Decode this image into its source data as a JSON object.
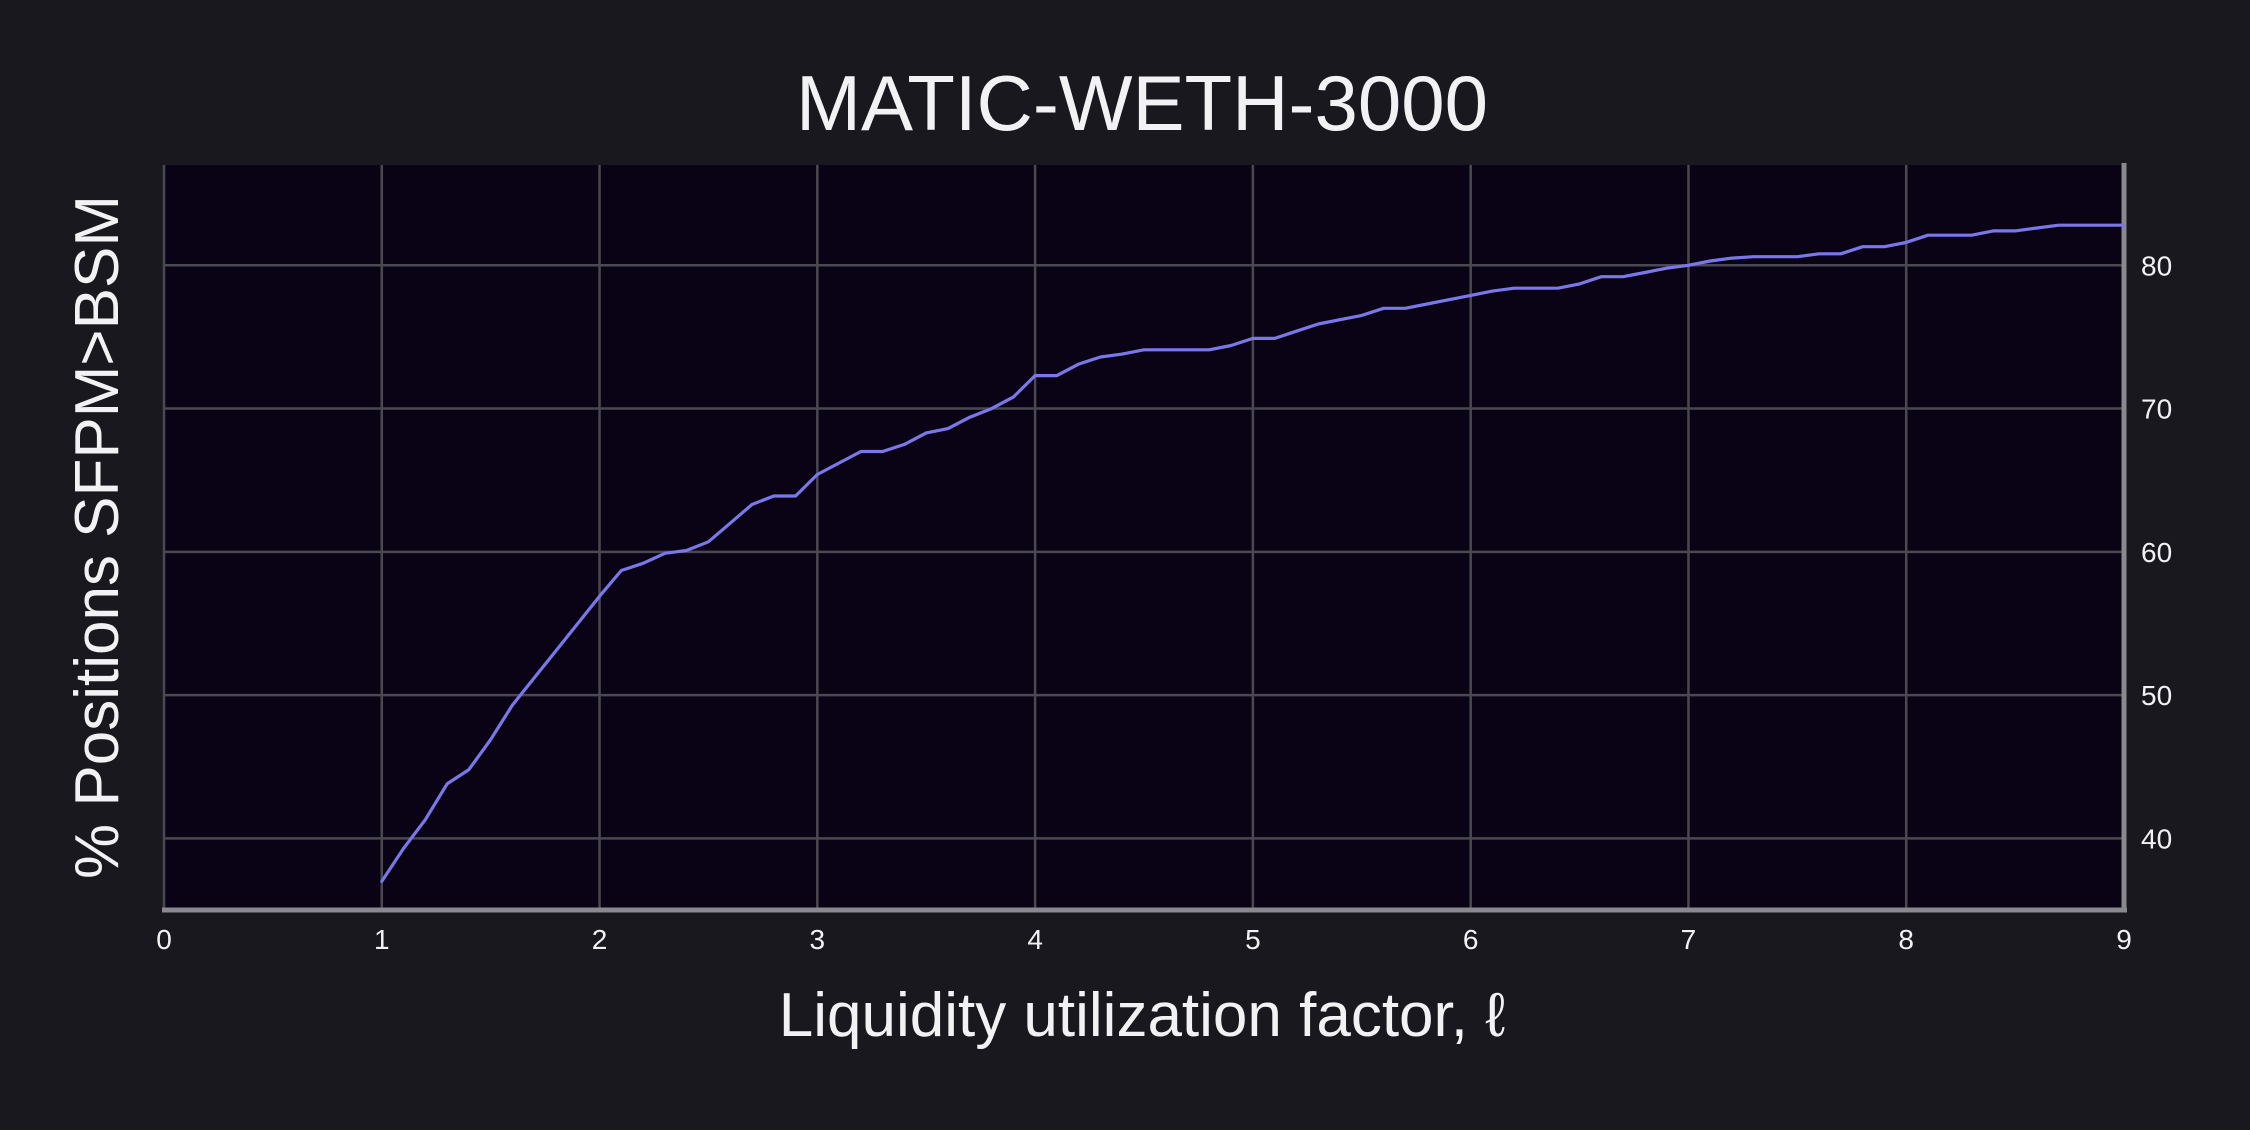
{
  "colors": {
    "background": "#19181e",
    "plot_background": "#0a0316",
    "grid": "#4a4850",
    "axis": "#8a8990",
    "series_line": "#7b77e8",
    "text": "#f2f2f4"
  },
  "chart_data": {
    "type": "line",
    "title": "MATIC-WETH-3000",
    "xlabel": "Liquidity utilization factor, ℓ",
    "ylabel": "% Positions SFPM>BSM",
    "xlim": [
      0,
      9
    ],
    "ylim": [
      35,
      87
    ],
    "xticks": [
      0,
      1,
      2,
      3,
      4,
      5,
      6,
      7,
      8,
      9
    ],
    "yticks": [
      40,
      50,
      60,
      70,
      80
    ],
    "y_axis_side": "right",
    "grid": true,
    "series": [
      {
        "x": [
          1.0,
          1.1,
          1.2,
          1.3,
          1.4,
          1.5,
          1.6,
          1.7,
          1.8,
          1.9,
          2.0,
          2.1,
          2.2,
          2.3,
          2.4,
          2.5,
          2.6,
          2.7,
          2.8,
          2.9,
          3.0,
          3.1,
          3.2,
          3.3,
          3.4,
          3.5,
          3.6,
          3.7,
          3.8,
          3.9,
          4.0,
          4.1,
          4.2,
          4.3,
          4.4,
          4.5,
          4.6,
          4.7,
          4.8,
          4.9,
          5.0,
          5.1,
          5.2,
          5.3,
          5.4,
          5.5,
          5.6,
          5.7,
          5.8,
          5.9,
          6.0,
          6.1,
          6.2,
          6.3,
          6.4,
          6.5,
          6.6,
          6.7,
          6.8,
          6.9,
          7.0,
          7.1,
          7.2,
          7.3,
          7.4,
          7.5,
          7.6,
          7.7,
          7.8,
          7.9,
          8.0,
          8.1,
          8.2,
          8.3,
          8.4,
          8.5,
          8.6,
          8.7,
          8.8,
          8.9,
          9.0
        ],
        "values": [
          37.0,
          39.3,
          41.3,
          43.8,
          44.8,
          46.9,
          49.3,
          51.2,
          53.1,
          55.0,
          56.9,
          58.7,
          59.2,
          59.9,
          60.1,
          60.7,
          62.0,
          63.3,
          63.9,
          63.9,
          65.4,
          66.2,
          67.0,
          67.0,
          67.5,
          68.3,
          68.6,
          69.4,
          70.0,
          70.8,
          72.3,
          72.3,
          73.1,
          73.6,
          73.8,
          74.1,
          74.1,
          74.1,
          74.1,
          74.4,
          74.9,
          74.9,
          75.4,
          75.9,
          76.2,
          76.5,
          77.0,
          77.0,
          77.3,
          77.6,
          77.9,
          78.2,
          78.4,
          78.4,
          78.4,
          78.7,
          79.2,
          79.2,
          79.5,
          79.8,
          80.0,
          80.3,
          80.5,
          80.6,
          80.6,
          80.6,
          80.8,
          80.8,
          81.3,
          81.3,
          81.6,
          82.1,
          82.1,
          82.1,
          82.4,
          82.4,
          82.6,
          82.8,
          82.8,
          82.8,
          82.8
        ]
      }
    ]
  }
}
